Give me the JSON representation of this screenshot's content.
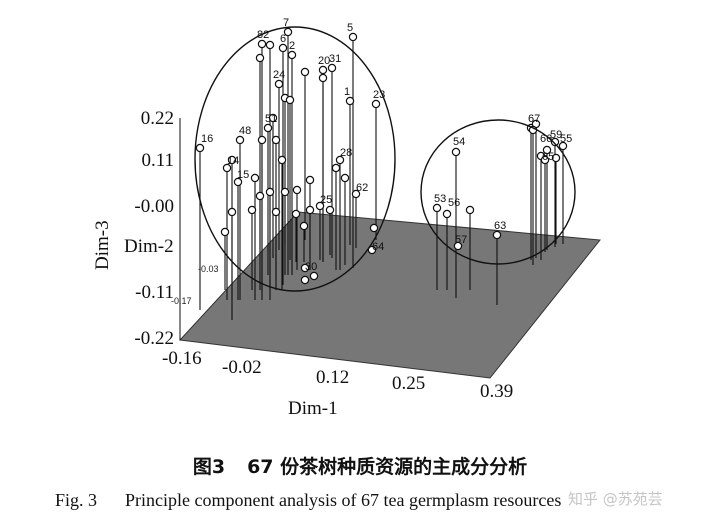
{
  "chart_data": {
    "type": "scatter",
    "subtype": "3d-stem-scatter",
    "title": "",
    "x_axis": {
      "label": "Dim-1",
      "ticks": [
        "-0.16",
        "-0.02",
        "0.12",
        "0.25",
        "0.39"
      ],
      "range": [
        -0.16,
        0.39
      ]
    },
    "y_axis": {
      "label": "Dim-2",
      "ticks": []
    },
    "z_axis": {
      "label": "Dim-3",
      "ticks": [
        "0.22",
        "0.11",
        "-0.00",
        "-0.11",
        "-0.22"
      ],
      "range": [
        -0.22,
        0.22
      ]
    },
    "groups": [
      "left cluster (ellipse)",
      "right cluster (ellipse)"
    ],
    "points": [
      {
        "id": "7"
      },
      {
        "id": "5"
      },
      {
        "id": "82"
      },
      {
        "id": "6"
      },
      {
        "id": "2"
      },
      {
        "id": "20"
      },
      {
        "id": "31"
      },
      {
        "id": "24"
      },
      {
        "id": "1"
      },
      {
        "id": "23"
      },
      {
        "id": "16"
      },
      {
        "id": "48"
      },
      {
        "id": "51"
      },
      {
        "id": "14"
      },
      {
        "id": "15"
      },
      {
        "id": "28"
      },
      {
        "id": "62"
      },
      {
        "id": "25"
      },
      {
        "id": "64"
      },
      {
        "id": "30"
      },
      {
        "id": "54"
      },
      {
        "id": "53"
      },
      {
        "id": "56"
      },
      {
        "id": "57"
      },
      {
        "id": "63"
      },
      {
        "id": "67"
      },
      {
        "id": "66"
      },
      {
        "id": "59"
      },
      {
        "id": "55"
      },
      {
        "id": "65"
      }
    ],
    "extra_labels": [
      "-0.03",
      "-0.17"
    ]
  },
  "caption": {
    "cn_num": "图3",
    "cn_text": "67 份茶树种质资源的主成分分析",
    "en_num": "Fig. 3",
    "en_text": "Principle component analysis of 67 tea germplasm resources"
  },
  "watermark": "知乎 @苏苑芸",
  "colors": {
    "plane": "#777777",
    "stroke": "#111111",
    "marker_fill": "#ffffff"
  }
}
